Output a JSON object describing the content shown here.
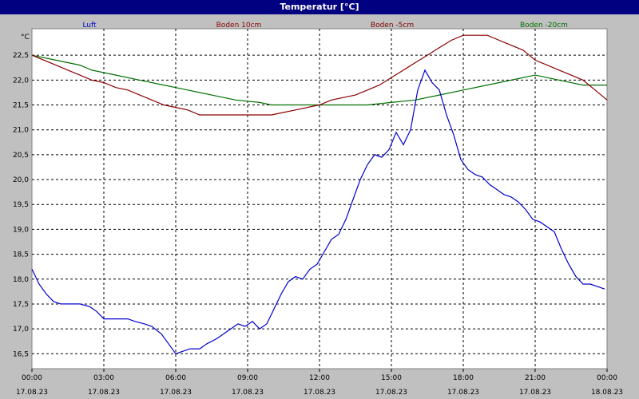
{
  "window": {
    "title": "Temperatur [°C]"
  },
  "colors": {
    "background": "#C0C0C0",
    "plot_background": "#FFFFFF",
    "titlebar": "#000080",
    "grid": "#000000"
  },
  "chart_data": {
    "type": "line",
    "title": "Temperatur [°C]",
    "ylabel": "°C",
    "xlabel": "",
    "ylim": [
      16.2,
      23.0
    ],
    "xlim": [
      0,
      24
    ],
    "y_ticks": [
      "22,5",
      "22,0",
      "21,5",
      "21,0",
      "20,5",
      "20,0",
      "19,5",
      "19,0",
      "18,5",
      "18,0",
      "17,5",
      "17,0",
      "16,5"
    ],
    "y_tick_values": [
      22.5,
      22.0,
      21.5,
      21.0,
      20.5,
      20.0,
      19.5,
      19.0,
      18.5,
      18.0,
      17.5,
      17.0,
      16.5
    ],
    "x_ticks": [
      {
        "time": "00:00",
        "date": "17.08.23",
        "hour": 0
      },
      {
        "time": "03:00",
        "date": "17.08.23",
        "hour": 3
      },
      {
        "time": "06:00",
        "date": "17.08.23",
        "hour": 6
      },
      {
        "time": "09:00",
        "date": "17.08.23",
        "hour": 9
      },
      {
        "time": "12:00",
        "date": "17.08.23",
        "hour": 12
      },
      {
        "time": "15:00",
        "date": "17.08.23",
        "hour": 15
      },
      {
        "time": "18:00",
        "date": "17.08.23",
        "hour": 18
      },
      {
        "time": "21:00",
        "date": "17.08.23",
        "hour": 21
      },
      {
        "time": "00:00",
        "date": "18.08.23",
        "hour": 24
      }
    ],
    "grid": true,
    "legend_position": "top",
    "series": [
      {
        "name": "Luft",
        "color": "#0000CC",
        "points": [
          [
            0,
            18.2
          ],
          [
            0.3,
            17.9
          ],
          [
            0.6,
            17.7
          ],
          [
            0.9,
            17.55
          ],
          [
            1.2,
            17.5
          ],
          [
            1.6,
            17.5
          ],
          [
            2.0,
            17.5
          ],
          [
            2.4,
            17.45
          ],
          [
            2.7,
            17.35
          ],
          [
            3.0,
            17.2
          ],
          [
            3.5,
            17.2
          ],
          [
            4.0,
            17.2
          ],
          [
            4.3,
            17.15
          ],
          [
            4.7,
            17.1
          ],
          [
            5.0,
            17.05
          ],
          [
            5.4,
            16.9
          ],
          [
            5.7,
            16.7
          ],
          [
            6.0,
            16.5
          ],
          [
            6.3,
            16.55
          ],
          [
            6.6,
            16.6
          ],
          [
            7.0,
            16.6
          ],
          [
            7.3,
            16.7
          ],
          [
            7.7,
            16.8
          ],
          [
            8.0,
            16.9
          ],
          [
            8.3,
            17.0
          ],
          [
            8.6,
            17.1
          ],
          [
            8.9,
            17.05
          ],
          [
            9.2,
            17.15
          ],
          [
            9.5,
            17.0
          ],
          [
            9.8,
            17.1
          ],
          [
            10.1,
            17.4
          ],
          [
            10.4,
            17.7
          ],
          [
            10.7,
            17.95
          ],
          [
            11.0,
            18.05
          ],
          [
            11.3,
            18.0
          ],
          [
            11.6,
            18.2
          ],
          [
            11.9,
            18.3
          ],
          [
            12.2,
            18.55
          ],
          [
            12.5,
            18.8
          ],
          [
            12.8,
            18.9
          ],
          [
            13.1,
            19.2
          ],
          [
            13.4,
            19.6
          ],
          [
            13.7,
            20.0
          ],
          [
            14.0,
            20.3
          ],
          [
            14.3,
            20.5
          ],
          [
            14.6,
            20.45
          ],
          [
            14.9,
            20.6
          ],
          [
            15.2,
            20.95
          ],
          [
            15.5,
            20.7
          ],
          [
            15.8,
            21.0
          ],
          [
            16.1,
            21.8
          ],
          [
            16.4,
            22.2
          ],
          [
            16.7,
            21.95
          ],
          [
            17.0,
            21.8
          ],
          [
            17.3,
            21.3
          ],
          [
            17.6,
            20.9
          ],
          [
            17.9,
            20.4
          ],
          [
            18.2,
            20.2
          ],
          [
            18.5,
            20.1
          ],
          [
            18.8,
            20.05
          ],
          [
            19.1,
            19.9
          ],
          [
            19.4,
            19.8
          ],
          [
            19.7,
            19.7
          ],
          [
            20.0,
            19.65
          ],
          [
            20.3,
            19.55
          ],
          [
            20.6,
            19.4
          ],
          [
            20.9,
            19.2
          ],
          [
            21.2,
            19.15
          ],
          [
            21.5,
            19.05
          ],
          [
            21.8,
            18.95
          ],
          [
            22.1,
            18.6
          ],
          [
            22.4,
            18.3
          ],
          [
            22.7,
            18.05
          ],
          [
            23.0,
            17.9
          ],
          [
            23.3,
            17.9
          ],
          [
            23.6,
            17.85
          ],
          [
            23.9,
            17.8
          ]
        ]
      },
      {
        "name": "Boden 10cm",
        "color": "#8B0000",
        "points": [
          [
            0,
            22.5
          ],
          [
            0.5,
            22.4
          ],
          [
            1.0,
            22.3
          ],
          [
            1.5,
            22.2
          ],
          [
            2.0,
            22.1
          ],
          [
            2.5,
            22.0
          ],
          [
            3.0,
            21.95
          ],
          [
            3.5,
            21.85
          ],
          [
            4.0,
            21.8
          ],
          [
            4.5,
            21.7
          ],
          [
            5.0,
            21.6
          ],
          [
            5.5,
            21.5
          ],
          [
            6.0,
            21.45
          ],
          [
            6.5,
            21.4
          ],
          [
            7.0,
            21.3
          ],
          [
            7.5,
            21.3
          ],
          [
            8.0,
            21.3
          ],
          [
            9.0,
            21.3
          ],
          [
            10.0,
            21.3
          ],
          [
            10.5,
            21.35
          ],
          [
            11.0,
            21.4
          ],
          [
            11.5,
            21.45
          ],
          [
            12.0,
            21.5
          ],
          [
            12.5,
            21.6
          ],
          [
            13.0,
            21.65
          ],
          [
            13.5,
            21.7
          ],
          [
            14.0,
            21.8
          ],
          [
            14.5,
            21.9
          ],
          [
            15.0,
            22.05
          ],
          [
            15.5,
            22.2
          ],
          [
            16.0,
            22.35
          ],
          [
            16.5,
            22.5
          ],
          [
            17.0,
            22.65
          ],
          [
            17.5,
            22.8
          ],
          [
            18.0,
            22.9
          ],
          [
            18.5,
            22.9
          ],
          [
            19.0,
            22.9
          ],
          [
            19.5,
            22.8
          ],
          [
            20.0,
            22.7
          ],
          [
            20.5,
            22.6
          ],
          [
            21.0,
            22.4
          ],
          [
            21.5,
            22.3
          ],
          [
            22.0,
            22.2
          ],
          [
            22.5,
            22.1
          ],
          [
            23.0,
            22.0
          ],
          [
            23.5,
            21.8
          ],
          [
            24.0,
            21.6
          ]
        ]
      },
      {
        "name": "Boden -5cm",
        "color": "#800000",
        "points": []
      },
      {
        "name": "Boden -20cm",
        "color": "#007000",
        "points": [
          [
            0,
            22.5
          ],
          [
            1.0,
            22.4
          ],
          [
            2.0,
            22.3
          ],
          [
            2.5,
            22.2
          ],
          [
            3.5,
            22.1
          ],
          [
            4.5,
            22.0
          ],
          [
            5.5,
            21.9
          ],
          [
            6.0,
            21.85
          ],
          [
            6.5,
            21.8
          ],
          [
            7.5,
            21.7
          ],
          [
            8.5,
            21.6
          ],
          [
            9.5,
            21.55
          ],
          [
            10.0,
            21.5
          ],
          [
            11.0,
            21.5
          ],
          [
            12.0,
            21.5
          ],
          [
            13.0,
            21.5
          ],
          [
            14.0,
            21.5
          ],
          [
            15.0,
            21.55
          ],
          [
            16.0,
            21.6
          ],
          [
            17.0,
            21.7
          ],
          [
            18.0,
            21.8
          ],
          [
            19.0,
            21.9
          ],
          [
            20.0,
            22.0
          ],
          [
            21.0,
            22.1
          ],
          [
            22.0,
            22.0
          ],
          [
            23.0,
            21.9
          ],
          [
            24.0,
            21.9
          ]
        ]
      }
    ]
  }
}
